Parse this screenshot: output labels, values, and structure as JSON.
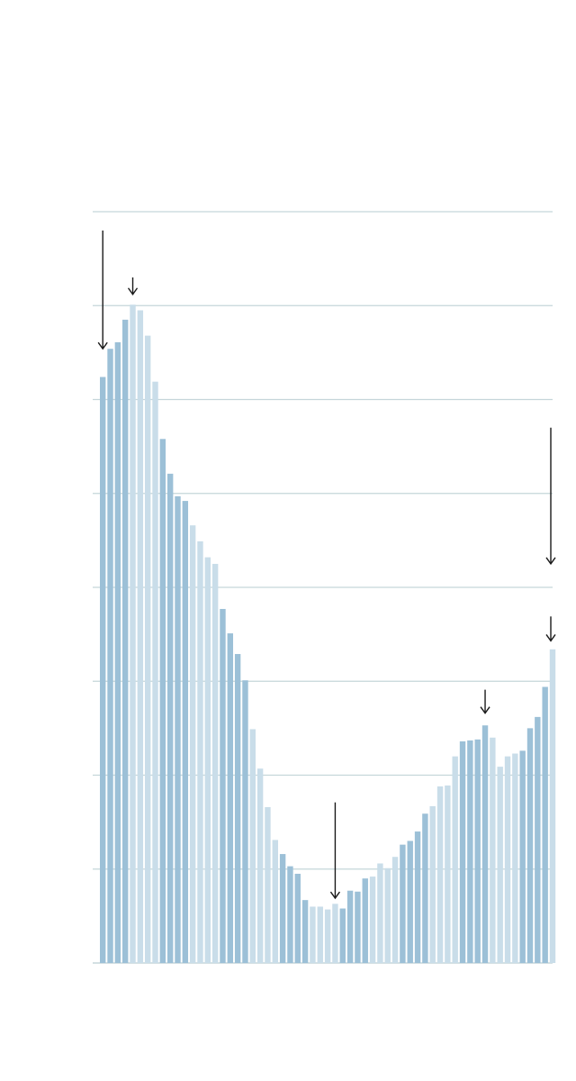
{
  "chart_data": {
    "type": "bar",
    "title": "",
    "xlabel": "",
    "ylabel": "",
    "ylim": [
      0,
      8
    ],
    "grid": true,
    "gridlines": [
      1,
      2,
      3,
      4,
      5,
      6,
      7,
      8
    ],
    "colors": {
      "dark": "#9cc0d7",
      "light": "#c9dde9",
      "grid": "#c5d6da",
      "axis": "#c5d6da",
      "arrow": "#1a1a1a"
    },
    "shading": [
      "d",
      "d",
      "d",
      "d",
      "l",
      "l",
      "l",
      "l",
      "d",
      "d",
      "d",
      "d",
      "l",
      "l",
      "l",
      "l",
      "d",
      "d",
      "d",
      "d",
      "l",
      "l",
      "l",
      "l",
      "d",
      "d",
      "d",
      "d",
      "l",
      "l",
      "l",
      "l",
      "d",
      "d",
      "d",
      "d",
      "l",
      "l",
      "l",
      "l",
      "d",
      "d",
      "d",
      "d",
      "l",
      "l",
      "l",
      "l",
      "d",
      "d",
      "d",
      "d",
      "l",
      "l",
      "l",
      "l",
      "d",
      "d",
      "d",
      "d",
      "l"
    ],
    "values": [
      6.24,
      6.54,
      6.61,
      6.85,
      7.01,
      6.95,
      6.68,
      6.19,
      5.58,
      5.21,
      4.97,
      4.92,
      4.66,
      4.49,
      4.32,
      4.25,
      3.77,
      3.51,
      3.29,
      3.01,
      2.49,
      2.07,
      1.66,
      1.31,
      1.16,
      1.03,
      0.95,
      0.67,
      0.6,
      0.6,
      0.57,
      0.63,
      0.58,
      0.77,
      0.76,
      0.9,
      0.92,
      1.06,
      1.01,
      1.13,
      1.26,
      1.3,
      1.4,
      1.59,
      1.67,
      1.88,
      1.89,
      2.2,
      2.36,
      2.37,
      2.38,
      2.53,
      2.4,
      2.09,
      2.2,
      2.23,
      2.26,
      2.5,
      2.62,
      2.94,
      3.34
    ],
    "annotations": [
      {
        "bar": 0,
        "from": 7.8,
        "to": 6.54
      },
      {
        "bar": 4,
        "from": 7.3,
        "to": 7.12
      },
      {
        "bar": 31,
        "from": 1.71,
        "to": 0.69
      },
      {
        "bar": 51,
        "from": 2.91,
        "to": 2.66
      },
      {
        "bar": 60,
        "from": 5.7,
        "to": 4.25
      },
      {
        "bar": 60,
        "from": 3.69,
        "to": 3.43
      }
    ]
  }
}
